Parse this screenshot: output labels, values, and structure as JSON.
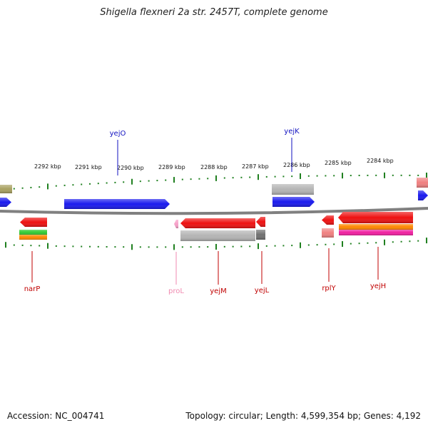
{
  "title": "Shigella flexneri 2a str. 2457T, complete genome",
  "footer": {
    "accession": "Accession: NC_004741",
    "summary": "Topology: circular; Length: 4,599,354 bp; Genes: 4,192"
  },
  "ticks": [
    {
      "label": "2292 kbp"
    },
    {
      "label": "2291 kbp"
    },
    {
      "label": "2290 kbp"
    },
    {
      "label": "2289 kbp"
    },
    {
      "label": "2288 kbp"
    },
    {
      "label": "2287 kbp"
    },
    {
      "label": "2286 kbp"
    },
    {
      "label": "2285 kbp"
    },
    {
      "label": "2284 kbp"
    }
  ],
  "top_labels": [
    {
      "label": "yejO",
      "color": "#1010c0"
    },
    {
      "label": "yejK",
      "color": "#1010c0"
    }
  ],
  "bottom_labels": [
    {
      "label": "narP",
      "color": "#c00000"
    },
    {
      "label": "proL",
      "color": "#f08ab0"
    },
    {
      "label": "yejM",
      "color": "#c00000"
    },
    {
      "label": "yejL",
      "color": "#c00000"
    },
    {
      "label": "rplY",
      "color": "#c00000"
    },
    {
      "label": "yejH",
      "color": "#c00000"
    }
  ],
  "colors": {
    "forward": "#1a1aee",
    "reverse": "#ee1111",
    "grey": "#b4b4b4",
    "green": "#33cc33",
    "orange": "#ff8800",
    "pink": "#f01fa0",
    "olive": "#a8a060",
    "salmon": "#f08080",
    "backbone": "#808080",
    "ticks": "#208020"
  }
}
